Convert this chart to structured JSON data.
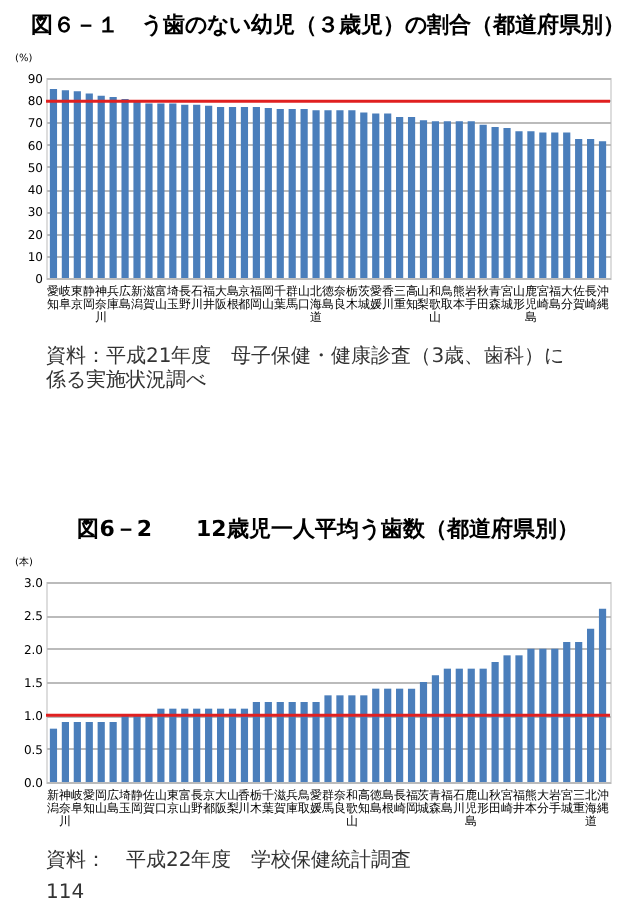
{
  "chart_data": [
    {
      "type": "bar",
      "title": "図６－１　う歯のない幼児（３歳児）の割合（都道府県別）",
      "ylabel": "(%)",
      "categories": [
        "愛知",
        "岐阜",
        "東京",
        "静岡",
        "神奈川",
        "兵庫",
        "広島",
        "新潟",
        "滋賀",
        "富山",
        "埼玉",
        "長野",
        "石川",
        "福井",
        "大阪",
        "島根",
        "京都",
        "福岡",
        "岡山",
        "千葉",
        "群馬",
        "山口",
        "北海道",
        "徳島",
        "奈良",
        "栃木",
        "茨城",
        "愛媛",
        "香川",
        "三重",
        "高知",
        "山梨",
        "和歌山",
        "鳥取",
        "熊本",
        "岩手",
        "秋田",
        "青森",
        "宮城",
        "山形",
        "鹿児島",
        "宮崎",
        "福島",
        "大分",
        "佐賀",
        "長崎",
        "沖縄"
      ],
      "values": [
        85,
        84.5,
        84,
        83,
        82,
        81.5,
        80.5,
        79.5,
        78.5,
        78.5,
        78.5,
        78,
        78,
        77.5,
        77,
        77,
        77,
        77,
        76.5,
        76,
        76,
        76,
        75.5,
        75.5,
        75.5,
        75.5,
        74.5,
        74,
        74,
        72.5,
        72.5,
        71,
        70.5,
        70.5,
        70.5,
        70.5,
        69,
        68,
        67.5,
        66,
        66,
        65.5,
        65.5,
        65.5,
        62.5,
        62.5,
        61.5
      ],
      "color": "#4a7ebb",
      "ylim": [
        0,
        90
      ],
      "yticks": [
        0,
        10,
        20,
        30,
        40,
        50,
        60,
        70,
        80,
        90
      ],
      "grid": "y",
      "ref_lines": [
        {
          "axis": "y",
          "value": 79.5,
          "color": "#e02020"
        }
      ],
      "annotations": [
        "資料：平成21年度　母子保健・健康診査（3歳、歯科）に係る実施状況調べ"
      ]
    },
    {
      "type": "bar",
      "title": "図6－2　　12歳児一人平均う歯数（都道府県別）",
      "ylabel": "(本)",
      "categories": [
        "新潟",
        "神奈川",
        "岐阜",
        "愛知",
        "岡山",
        "広島",
        "埼玉",
        "静岡",
        "佐賀",
        "山口",
        "東京",
        "富山",
        "長野",
        "京都",
        "大阪",
        "山梨",
        "香川",
        "栃木",
        "千葉",
        "滋賀",
        "兵庫",
        "鳥取",
        "愛媛",
        "群馬",
        "奈良",
        "和歌山",
        "高知",
        "徳島",
        "島根",
        "長崎",
        "福岡",
        "茨城",
        "青森",
        "福島",
        "石川",
        "鹿児島",
        "山形",
        "秋田",
        "宮崎",
        "福井",
        "熊本",
        "大分",
        "岩手",
        "宮城",
        "三重",
        "北海道",
        "沖縄"
      ],
      "values": [
        0.8,
        0.9,
        0.9,
        0.9,
        0.9,
        0.9,
        1.0,
        1.0,
        1.0,
        1.1,
        1.1,
        1.1,
        1.1,
        1.1,
        1.1,
        1.1,
        1.1,
        1.2,
        1.2,
        1.2,
        1.2,
        1.2,
        1.2,
        1.3,
        1.3,
        1.3,
        1.3,
        1.4,
        1.4,
        1.4,
        1.4,
        1.5,
        1.6,
        1.7,
        1.7,
        1.7,
        1.7,
        1.8,
        1.9,
        1.9,
        2.0,
        2.0,
        2.0,
        2.1,
        2.1,
        2.3,
        2.6
      ],
      "color": "#4a7ebb",
      "ylim": [
        0,
        3
      ],
      "yticks": [
        {
          "value": 0,
          "label": "0.0"
        },
        {
          "value": 0.5,
          "label": "0.5"
        },
        {
          "value": 1,
          "label": "1.0"
        },
        {
          "value": 1.5,
          "label": "1.5"
        },
        {
          "value": 2,
          "label": "2.0"
        },
        {
          "value": 2.5,
          "label": "2.5"
        },
        {
          "value": 3,
          "label": "3.0"
        }
      ],
      "grid": "y",
      "ref_lines": [
        {
          "axis": "y",
          "value": 1.0,
          "color": "#e02020"
        }
      ],
      "annotations": [
        "資料：　平成22年度　学校保健統計調査",
        "114"
      ]
    }
  ]
}
